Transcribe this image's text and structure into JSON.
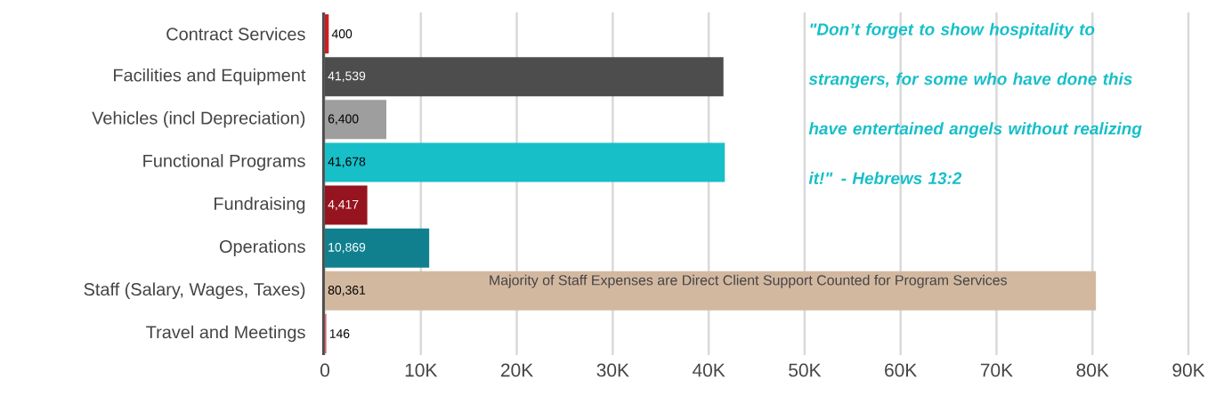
{
  "chart_data": {
    "type": "bar",
    "orientation": "horizontal",
    "categories": [
      "Contract Services",
      "Facilities and Equipment",
      "Vehicles (incl Depreciation)",
      "Functional Programs",
      "Fundraising",
      "Operations",
      "Staff (Salary, Wages, Taxes)",
      "Travel and Meetings"
    ],
    "values": [
      400,
      41539,
      6400,
      41678,
      4417,
      10869,
      80361,
      146
    ],
    "value_labels": [
      "400",
      "41,539",
      "6,400",
      "41,678",
      "4,417",
      "10,869",
      "80,361",
      "146"
    ],
    "colors": [
      "#d01c22",
      "#4d4d4d",
      "#9e9e9e",
      "#17bfc9",
      "#96141f",
      "#10808f",
      "#d3b8a0",
      "#e06070"
    ],
    "xlim": [
      0,
      90000
    ],
    "xticks": [
      0,
      {
        "value": 10000,
        "label": "10K"
      },
      {
        "value": 20000,
        "label": "20K"
      },
      {
        "value": 30000,
        "label": "30K"
      },
      {
        "value": 40000,
        "label": "40K"
      },
      {
        "value": 50000,
        "label": "50K"
      },
      {
        "value": 60000,
        "label": "60K"
      },
      {
        "value": 70000,
        "label": "70K"
      },
      {
        "value": 80000,
        "label": "80K"
      },
      {
        "value": 90000,
        "label": "90K"
      }
    ],
    "grid": "x",
    "annotations": [
      "\"Don’t forget to show hospitality to strangers, for some who have done this have entertained angels without realizing it!\" - Hebrews 13:2",
      "Majority of Staff Expenses are Direct Client Support Counted for Program Services"
    ]
  }
}
